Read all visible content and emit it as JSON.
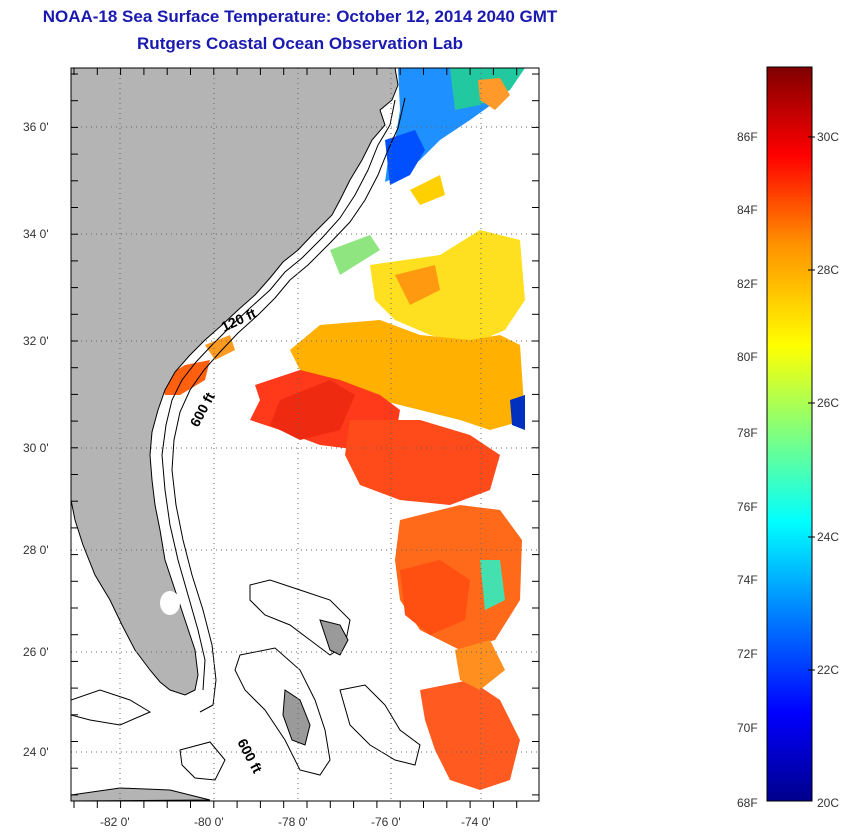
{
  "header": {
    "title": "NOAA-18 Sea Surface Temperature:  October 12, 2014 2040 GMT",
    "subtitle": "Rutgers Coastal Ocean Observation Lab"
  },
  "map": {
    "lat_labels": [
      "36 0'",
      "34 0'",
      "32 0'",
      "30 0'",
      "28 0'",
      "26 0'",
      "24 0'"
    ],
    "lon_labels": [
      "-82 0'",
      "-80 0'",
      "-78 0'",
      "-76 0'",
      "-74 0'"
    ],
    "contour_labels": [
      "120 ft",
      "600 ft",
      "600 ft"
    ],
    "colors": {
      "land": "#b4b4b4",
      "ocean": "#ffffff",
      "coast": "#000000"
    }
  },
  "colorbar": {
    "f_labels": [
      "86F",
      "84F",
      "82F",
      "80F",
      "78F",
      "76F",
      "74F",
      "72F",
      "70F",
      "68F"
    ],
    "c_labels": [
      "30C",
      "28C",
      "26C",
      "24C",
      "22C",
      "20C"
    ],
    "range_f": [
      68,
      88
    ],
    "range_c": [
      20,
      31
    ],
    "colormap": [
      "#00008c",
      "#0000ff",
      "#0090ff",
      "#00ffff",
      "#7fff7f",
      "#ffff00",
      "#ff9000",
      "#ff0000",
      "#800000"
    ]
  }
}
